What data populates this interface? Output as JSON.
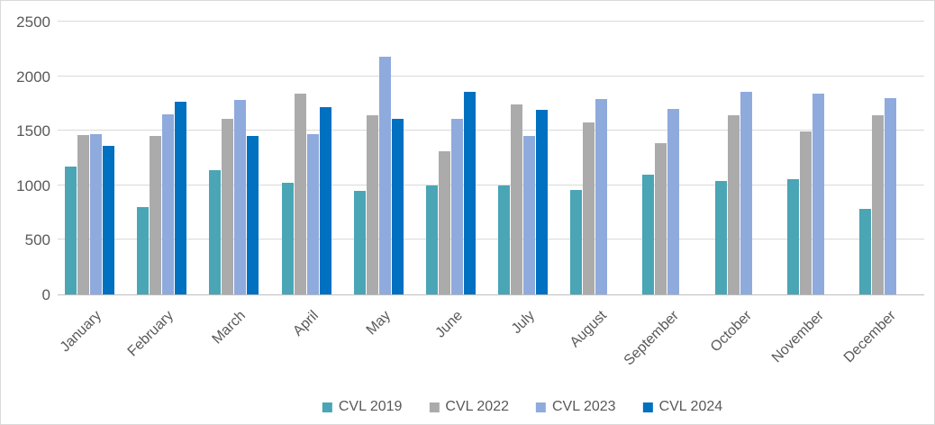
{
  "chart_data": {
    "type": "bar",
    "title": "",
    "categories": [
      "January",
      "February",
      "March",
      "April",
      "May",
      "June",
      "July",
      "August",
      "September",
      "October",
      "November",
      "December"
    ],
    "series": [
      {
        "name": "CVL 2019",
        "color": "#4AA5B5",
        "values": [
          1170,
          800,
          1140,
          1020,
          950,
          1000,
          1000,
          955,
          1100,
          1040,
          1060,
          780
        ]
      },
      {
        "name": "CVL 2022",
        "color": "#ABABAB",
        "values": [
          1460,
          1455,
          1610,
          1840,
          1640,
          1315,
          1740,
          1580,
          1390,
          1640,
          1490,
          1640
        ]
      },
      {
        "name": "CVL 2023",
        "color": "#8FAADC",
        "values": [
          1465,
          1650,
          1780,
          1470,
          2175,
          1605,
          1450,
          1790,
          1700,
          1860,
          1840,
          1795
        ]
      },
      {
        "name": "CVL 2024",
        "color": "#0070C0",
        "values": [
          1360,
          1765,
          1455,
          1715,
          1610,
          1860,
          1690,
          null,
          null,
          null,
          null,
          null
        ]
      }
    ],
    "y_ticks": [
      0,
      500,
      1000,
      1500,
      2000,
      2500
    ],
    "ylim": [
      0,
      2500
    ],
    "xlabel": "",
    "ylabel": "",
    "grid": true,
    "legend_position": "bottom"
  },
  "style": {
    "gridline_color": "#d9d9d9",
    "axis_line_color": "#bfbfbf",
    "tick_label_color": "#595959",
    "background_color": "#ffffff",
    "border_color": "#d9d9d9"
  }
}
